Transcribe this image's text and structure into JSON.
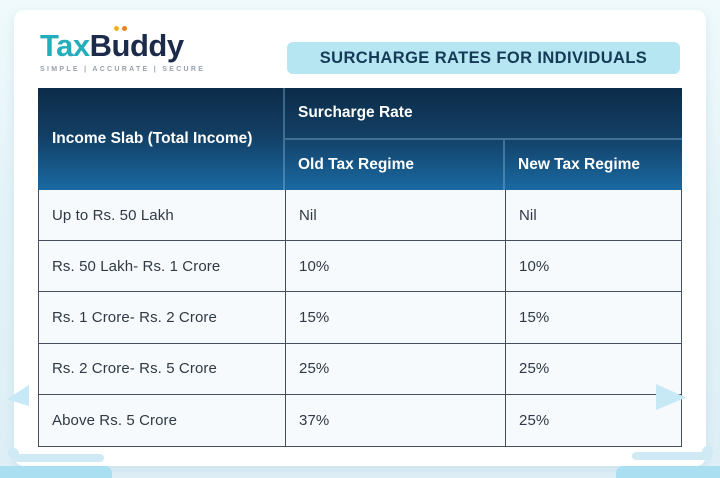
{
  "logo": {
    "tax": "Tax",
    "b": "B",
    "u": "u",
    "ddy": "ddy",
    "tagline": "SIMPLE | ACCURATE | SECURE",
    "colors": {
      "tax": "#24aebc",
      "buddy": "#1c2b4a",
      "dot_yellow": "#f2b01e",
      "dot_orange": "#ef7f1a"
    }
  },
  "title": "SURCHARGE RATES FOR INDIVIDUALS",
  "table": {
    "header": {
      "income_slab": "Income Slab (Total Income)",
      "surcharge_rate": "Surcharge Rate",
      "old_regime": "Old Tax Regime",
      "new_regime": "New Tax Regime"
    },
    "rows": [
      {
        "slab": "Up to Rs. 50 Lakh",
        "old": "Nil",
        "new": "Nil"
      },
      {
        "slab": "Rs. 50 Lakh- Rs. 1 Crore",
        "old": "10%",
        "new": "10%"
      },
      {
        "slab": "Rs. 1 Crore- Rs. 2 Crore",
        "old": "15%",
        "new": "15%"
      },
      {
        "slab": "Rs. 2 Crore- Rs. 5 Crore",
        "old": "25%",
        "new": "25%"
      },
      {
        "slab": "Above Rs. 5 Crore",
        "old": "37%",
        "new": "25%"
      }
    ]
  },
  "chart_data": {
    "type": "table",
    "title": "SURCHARGE RATES FOR INDIVIDUALS",
    "columns": [
      "Income Slab (Total Income)",
      "Old Tax Regime",
      "New Tax Regime"
    ],
    "rows": [
      [
        "Up to Rs. 50 Lakh",
        "Nil",
        "Nil"
      ],
      [
        "Rs. 50 Lakh- Rs. 1 Crore",
        "10%",
        "10%"
      ],
      [
        "Rs. 1 Crore- Rs. 2 Crore",
        "15%",
        "15%"
      ],
      [
        "Rs. 2 Crore- Rs. 5 Crore",
        "25%",
        "25%"
      ],
      [
        "Above Rs. 5 Crore",
        "37%",
        "25%"
      ]
    ],
    "colors": {
      "header_gradient_top": "#0c2c49",
      "header_gradient_bottom": "#1a69a2",
      "badge_background": "#b5e6f2",
      "badge_text": "#153a56",
      "body_background": "#f6fafc",
      "grid_border": "#46505c",
      "page_background": "#e4f3f8"
    }
  }
}
